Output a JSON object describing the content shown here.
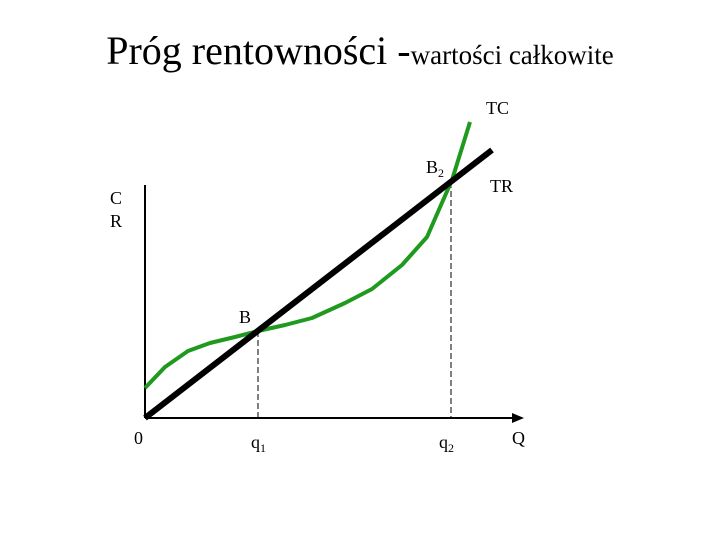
{
  "title": {
    "main": "Próg rentowności -",
    "sub": "wartości całkowite"
  },
  "labels": {
    "tc": "TC",
    "tr": "TR",
    "b2": {
      "text": "B",
      "sub": "2"
    },
    "b1": "B"
  },
  "y_axis": [
    "C",
    "R"
  ],
  "x_labels": {
    "origin": "0",
    "q1": {
      "text": "q",
      "sub": "1"
    },
    "q2": {
      "text": "q",
      "sub": "2"
    },
    "q": "Q"
  }
}
